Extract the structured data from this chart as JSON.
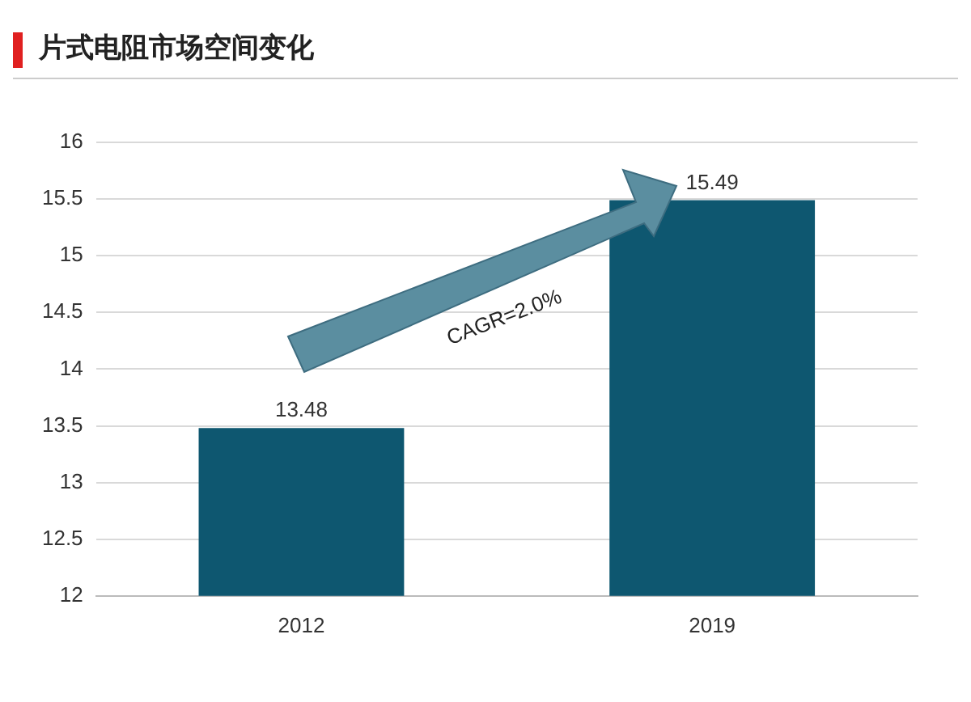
{
  "chart_data": {
    "type": "bar",
    "title": "片式电阻市场空间变化",
    "categories": [
      "2012",
      "2019"
    ],
    "values": [
      13.48,
      15.49
    ],
    "color": "#0e5770",
    "ylim": [
      12,
      16
    ],
    "yticks": [
      12,
      12.5,
      13,
      13.5,
      14,
      14.5,
      15,
      15.5,
      16
    ],
    "grid": "y",
    "data_labels": true,
    "annotations": [
      "CAGR=2.0%"
    ]
  }
}
